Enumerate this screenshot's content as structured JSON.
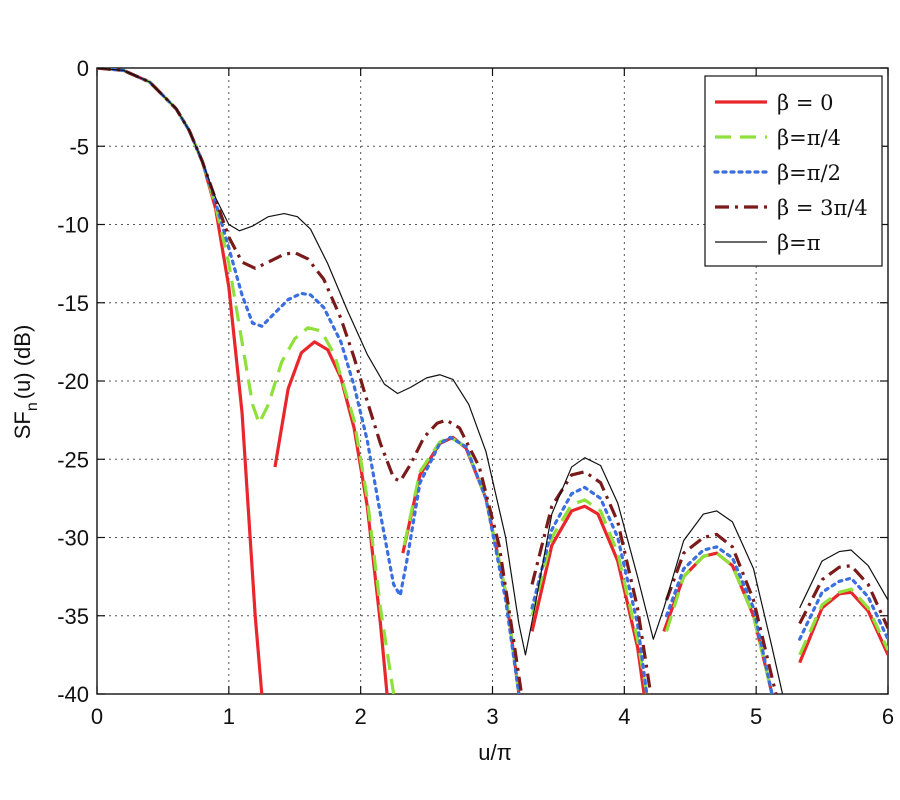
{
  "chart_data": {
    "type": "line",
    "xlabel": "u/π",
    "ylabel_main": "SF",
    "ylabel_sub": "n",
    "ylabel_rest": "(u) (dB)",
    "xlim": [
      0,
      6
    ],
    "ylim": [
      -40,
      0
    ],
    "xticks": [
      "0",
      "1",
      "2",
      "3",
      "4",
      "5",
      "6"
    ],
    "yticks": [
      "0",
      "-5",
      "-10",
      "-15",
      "-20",
      "-25",
      "-30",
      "-35",
      "-40"
    ],
    "grid": true,
    "legend_position": "top-right",
    "series": [
      {
        "name": "β = 0",
        "color": "#e8262b",
        "dash": "solid",
        "width": 3.2,
        "points": [
          [
            0,
            0
          ],
          [
            0.2,
            -0.15
          ],
          [
            0.4,
            -0.9
          ],
          [
            0.6,
            -2.6
          ],
          [
            0.7,
            -4.0
          ],
          [
            0.8,
            -6.0
          ],
          [
            0.9,
            -9.0
          ],
          [
            1.0,
            -14.0
          ],
          [
            1.1,
            -22.0
          ],
          [
            1.2,
            -35.0
          ],
          [
            1.25,
            -40.0
          ],
          [
            null,
            null
          ],
          [
            1.35,
            -25.5
          ],
          [
            1.45,
            -20.5
          ],
          [
            1.55,
            -18.2
          ],
          [
            1.65,
            -17.5
          ],
          [
            1.75,
            -18.0
          ],
          [
            1.85,
            -19.8
          ],
          [
            1.95,
            -23.0
          ],
          [
            2.05,
            -28.0
          ],
          [
            2.15,
            -35.5
          ],
          [
            2.2,
            -40.0
          ],
          [
            null,
            null
          ],
          [
            2.32,
            -31.0
          ],
          [
            2.45,
            -26.0
          ],
          [
            2.6,
            -24.0
          ],
          [
            2.7,
            -23.6
          ],
          [
            2.8,
            -24.3
          ],
          [
            2.95,
            -27.5
          ],
          [
            3.1,
            -33.5
          ],
          [
            3.2,
            -40.0
          ],
          [
            null,
            null
          ],
          [
            3.3,
            -36.0
          ],
          [
            3.45,
            -30.5
          ],
          [
            3.6,
            -28.3
          ],
          [
            3.7,
            -28.0
          ],
          [
            3.8,
            -28.5
          ],
          [
            3.95,
            -31.5
          ],
          [
            4.1,
            -37.0
          ],
          [
            4.15,
            -40.0
          ],
          [
            null,
            null
          ],
          [
            4.3,
            -36.0
          ],
          [
            4.45,
            -32.5
          ],
          [
            4.6,
            -31.2
          ],
          [
            4.7,
            -31.0
          ],
          [
            4.82,
            -31.8
          ],
          [
            4.98,
            -35.0
          ],
          [
            5.12,
            -40.0
          ],
          [
            null,
            null
          ],
          [
            5.33,
            -38.0
          ],
          [
            5.5,
            -34.5
          ],
          [
            5.63,
            -33.6
          ],
          [
            5.72,
            -33.5
          ],
          [
            5.85,
            -34.7
          ],
          [
            6.0,
            -37.5
          ]
        ]
      },
      {
        "name": "β=π/4",
        "color": "#8fe03a",
        "dash": "dashed",
        "width": 3.2,
        "points": [
          [
            0,
            0
          ],
          [
            0.2,
            -0.15
          ],
          [
            0.4,
            -0.9
          ],
          [
            0.6,
            -2.6
          ],
          [
            0.7,
            -4.0
          ],
          [
            0.8,
            -6.0
          ],
          [
            0.9,
            -8.8
          ],
          [
            1.0,
            -12.5
          ],
          [
            1.1,
            -17.5
          ],
          [
            1.18,
            -21.5
          ],
          [
            1.23,
            -22.7
          ],
          [
            1.3,
            -21.5
          ],
          [
            1.4,
            -18.8
          ],
          [
            1.5,
            -17.3
          ],
          [
            1.6,
            -16.6
          ],
          [
            1.7,
            -16.8
          ],
          [
            1.8,
            -18.3
          ],
          [
            1.95,
            -22.5
          ],
          [
            2.05,
            -27.5
          ],
          [
            2.15,
            -34.5
          ],
          [
            2.25,
            -40.0
          ],
          [
            null,
            null
          ],
          [
            2.33,
            -30.5
          ],
          [
            2.45,
            -25.8
          ],
          [
            2.6,
            -23.9
          ],
          [
            2.68,
            -23.6
          ],
          [
            2.8,
            -24.2
          ],
          [
            2.95,
            -27.5
          ],
          [
            3.1,
            -33.5
          ],
          [
            3.2,
            -40.0
          ],
          [
            null,
            null
          ],
          [
            3.3,
            -35.0
          ],
          [
            3.45,
            -30.0
          ],
          [
            3.6,
            -27.9
          ],
          [
            3.7,
            -27.6
          ],
          [
            3.82,
            -28.3
          ],
          [
            3.95,
            -31.0
          ],
          [
            4.1,
            -36.5
          ],
          [
            4.17,
            -40.0
          ],
          [
            null,
            null
          ],
          [
            4.32,
            -36.0
          ],
          [
            4.45,
            -32.5
          ],
          [
            4.6,
            -31.2
          ],
          [
            4.7,
            -31.0
          ],
          [
            4.82,
            -31.8
          ],
          [
            4.98,
            -35.0
          ],
          [
            5.12,
            -40.0
          ],
          [
            null,
            null
          ],
          [
            5.33,
            -37.5
          ],
          [
            5.5,
            -34.3
          ],
          [
            5.63,
            -33.5
          ],
          [
            5.72,
            -33.3
          ],
          [
            5.85,
            -34.5
          ],
          [
            6.0,
            -37.2
          ]
        ]
      },
      {
        "name": "β=π/2",
        "color": "#3a6fe0",
        "dash": "dotted",
        "width": 3.2,
        "points": [
          [
            0,
            0
          ],
          [
            0.2,
            -0.15
          ],
          [
            0.4,
            -0.9
          ],
          [
            0.6,
            -2.6
          ],
          [
            0.7,
            -4.0
          ],
          [
            0.8,
            -6.0
          ],
          [
            0.9,
            -8.6
          ],
          [
            1.0,
            -11.5
          ],
          [
            1.1,
            -14.5
          ],
          [
            1.18,
            -16.3
          ],
          [
            1.25,
            -16.5
          ],
          [
            1.32,
            -15.9
          ],
          [
            1.45,
            -14.8
          ],
          [
            1.55,
            -14.4
          ],
          [
            1.62,
            -14.5
          ],
          [
            1.72,
            -15.3
          ],
          [
            1.85,
            -17.5
          ],
          [
            1.95,
            -20.3
          ],
          [
            2.05,
            -23.8
          ],
          [
            2.15,
            -28.5
          ],
          [
            2.25,
            -33.0
          ],
          [
            2.3,
            -33.7
          ],
          [
            2.35,
            -31.5
          ],
          [
            2.45,
            -26.5
          ],
          [
            2.6,
            -24.0
          ],
          [
            2.68,
            -23.6
          ],
          [
            2.8,
            -24.2
          ],
          [
            2.95,
            -27.5
          ],
          [
            3.1,
            -34.0
          ],
          [
            3.2,
            -40.0
          ],
          [
            null,
            null
          ],
          [
            3.3,
            -34.5
          ],
          [
            3.45,
            -29.5
          ],
          [
            3.6,
            -27.2
          ],
          [
            3.7,
            -26.8
          ],
          [
            3.82,
            -27.5
          ],
          [
            3.95,
            -30.0
          ],
          [
            4.1,
            -35.5
          ],
          [
            4.17,
            -40.0
          ],
          [
            null,
            null
          ],
          [
            4.32,
            -35.0
          ],
          [
            4.45,
            -32.0
          ],
          [
            4.6,
            -30.8
          ],
          [
            4.7,
            -30.6
          ],
          [
            4.82,
            -31.3
          ],
          [
            4.98,
            -34.5
          ],
          [
            5.12,
            -40.0
          ],
          [
            null,
            null
          ],
          [
            5.33,
            -36.5
          ],
          [
            5.5,
            -33.5
          ],
          [
            5.63,
            -32.8
          ],
          [
            5.72,
            -32.6
          ],
          [
            5.85,
            -33.8
          ],
          [
            6.0,
            -36.5
          ]
        ]
      },
      {
        "name": "β = 3π/4",
        "color": "#7a1a1a",
        "dash": "dashdot",
        "width": 3.2,
        "points": [
          [
            0,
            0
          ],
          [
            0.2,
            -0.15
          ],
          [
            0.4,
            -0.9
          ],
          [
            0.6,
            -2.6
          ],
          [
            0.7,
            -4.0
          ],
          [
            0.8,
            -6.0
          ],
          [
            0.9,
            -8.4
          ],
          [
            1.0,
            -10.8
          ],
          [
            1.1,
            -12.4
          ],
          [
            1.2,
            -12.8
          ],
          [
            1.3,
            -12.4
          ],
          [
            1.42,
            -11.9
          ],
          [
            1.5,
            -11.8
          ],
          [
            1.6,
            -12.2
          ],
          [
            1.72,
            -13.5
          ],
          [
            1.85,
            -16.0
          ],
          [
            1.95,
            -18.5
          ],
          [
            2.05,
            -21.3
          ],
          [
            2.15,
            -24.0
          ],
          [
            2.25,
            -26.2
          ],
          [
            2.3,
            -26.4
          ],
          [
            2.38,
            -25.3
          ],
          [
            2.48,
            -23.6
          ],
          [
            2.58,
            -22.7
          ],
          [
            2.65,
            -22.5
          ],
          [
            2.75,
            -23.0
          ],
          [
            2.9,
            -25.5
          ],
          [
            3.05,
            -30.5
          ],
          [
            3.15,
            -36.0
          ],
          [
            3.22,
            -40.0
          ],
          [
            null,
            null
          ],
          [
            3.3,
            -33.0
          ],
          [
            3.45,
            -28.0
          ],
          [
            3.6,
            -26.0
          ],
          [
            3.7,
            -25.8
          ],
          [
            3.82,
            -26.5
          ],
          [
            3.95,
            -29.0
          ],
          [
            4.1,
            -34.5
          ],
          [
            4.2,
            -40.0
          ],
          [
            null,
            null
          ],
          [
            4.32,
            -34.0
          ],
          [
            4.45,
            -31.0
          ],
          [
            4.6,
            -30.0
          ],
          [
            4.7,
            -29.8
          ],
          [
            4.82,
            -30.6
          ],
          [
            4.98,
            -34.0
          ],
          [
            5.15,
            -40.0
          ],
          [
            null,
            null
          ],
          [
            5.33,
            -35.5
          ],
          [
            5.5,
            -32.7
          ],
          [
            5.63,
            -31.9
          ],
          [
            5.72,
            -31.8
          ],
          [
            5.85,
            -33.0
          ],
          [
            6.0,
            -35.8
          ]
        ]
      },
      {
        "name": "β=π",
        "color": "#111111",
        "dash": "solid",
        "width": 1.2,
        "points": [
          [
            0,
            0
          ],
          [
            0.2,
            -0.15
          ],
          [
            0.4,
            -0.9
          ],
          [
            0.6,
            -2.6
          ],
          [
            0.7,
            -4.0
          ],
          [
            0.8,
            -6.0
          ],
          [
            0.9,
            -8.3
          ],
          [
            1.0,
            -10.0
          ],
          [
            1.08,
            -10.4
          ],
          [
            1.18,
            -10.1
          ],
          [
            1.3,
            -9.5
          ],
          [
            1.42,
            -9.3
          ],
          [
            1.52,
            -9.5
          ],
          [
            1.62,
            -10.3
          ],
          [
            1.75,
            -12.5
          ],
          [
            1.9,
            -15.5
          ],
          [
            2.05,
            -18.3
          ],
          [
            2.18,
            -20.2
          ],
          [
            2.28,
            -20.8
          ],
          [
            2.38,
            -20.4
          ],
          [
            2.5,
            -19.8
          ],
          [
            2.6,
            -19.6
          ],
          [
            2.7,
            -19.9
          ],
          [
            2.82,
            -21.5
          ],
          [
            2.95,
            -24.5
          ],
          [
            3.1,
            -30.0
          ],
          [
            3.2,
            -35.5
          ],
          [
            3.25,
            -37.5
          ],
          [
            3.32,
            -34.5
          ],
          [
            3.45,
            -28.5
          ],
          [
            3.6,
            -25.5
          ],
          [
            3.7,
            -24.9
          ],
          [
            3.82,
            -25.4
          ],
          [
            3.95,
            -27.8
          ],
          [
            4.1,
            -32.5
          ],
          [
            4.22,
            -36.5
          ],
          [
            4.3,
            -34.5
          ],
          [
            4.45,
            -30.2
          ],
          [
            4.6,
            -28.5
          ],
          [
            4.7,
            -28.3
          ],
          [
            4.82,
            -29.0
          ],
          [
            4.98,
            -32.0
          ],
          [
            5.12,
            -37.0
          ],
          [
            5.2,
            -40.0
          ],
          [
            null,
            null
          ],
          [
            5.33,
            -34.5
          ],
          [
            5.5,
            -31.5
          ],
          [
            5.63,
            -30.9
          ],
          [
            5.72,
            -30.8
          ],
          [
            5.85,
            -31.8
          ],
          [
            6.0,
            -34.0
          ]
        ]
      }
    ]
  }
}
